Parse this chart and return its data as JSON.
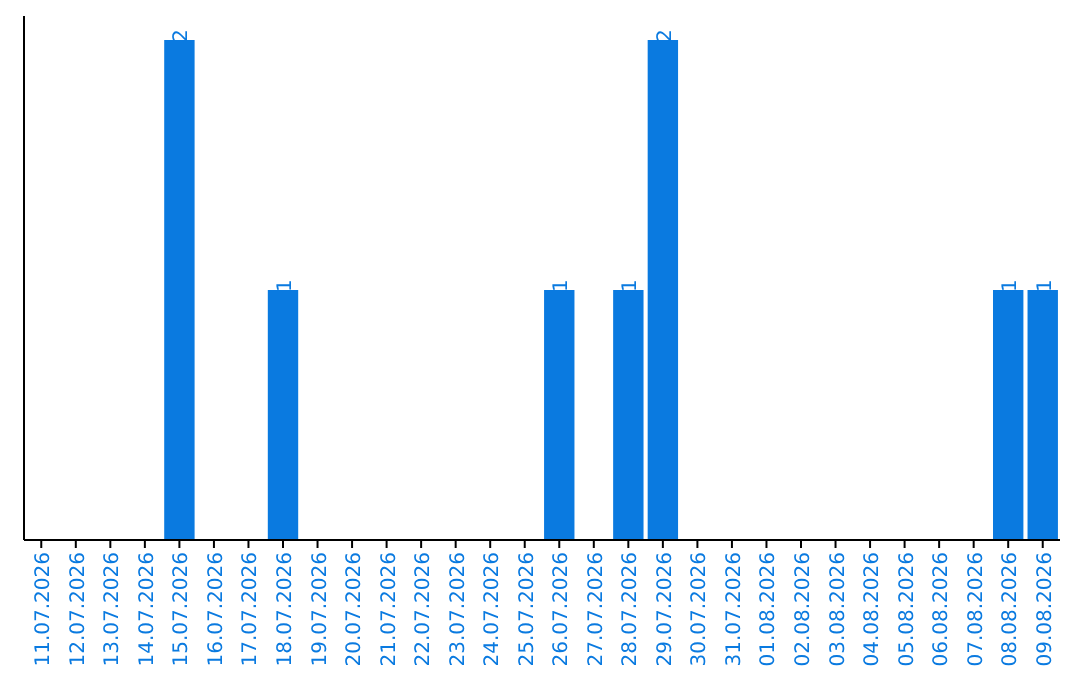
{
  "chart_data": {
    "type": "bar",
    "categories": [
      "11.07.2026",
      "12.07.2026",
      "13.07.2026",
      "14.07.2026",
      "15.07.2026",
      "16.07.2026",
      "17.07.2026",
      "18.07.2026",
      "19.07.2026",
      "20.07.2026",
      "21.07.2026",
      "22.07.2026",
      "23.07.2026",
      "24.07.2026",
      "25.07.2026",
      "26.07.2026",
      "27.07.2026",
      "28.07.2026",
      "29.07.2026",
      "30.07.2026",
      "31.07.2026",
      "01.08.2026",
      "02.08.2026",
      "03.08.2026",
      "04.08.2026",
      "05.08.2026",
      "06.08.2026",
      "07.08.2026",
      "08.08.2026",
      "09.08.2026"
    ],
    "values": [
      0,
      0,
      0,
      0,
      2,
      0,
      0,
      1,
      0,
      0,
      0,
      0,
      0,
      0,
      0,
      1,
      0,
      1,
      2,
      0,
      0,
      0,
      0,
      0,
      0,
      0,
      0,
      0,
      1,
      1
    ],
    "value_labels": [
      null,
      null,
      null,
      null,
      "2",
      null,
      null,
      "1",
      null,
      null,
      null,
      null,
      null,
      null,
      null,
      "1",
      null,
      "1",
      "2",
      null,
      null,
      null,
      null,
      null,
      null,
      null,
      null,
      null,
      "1",
      "1"
    ],
    "color": "#0a7ae0",
    "ylim": [
      0,
      2
    ],
    "tick_labels": "x"
  }
}
